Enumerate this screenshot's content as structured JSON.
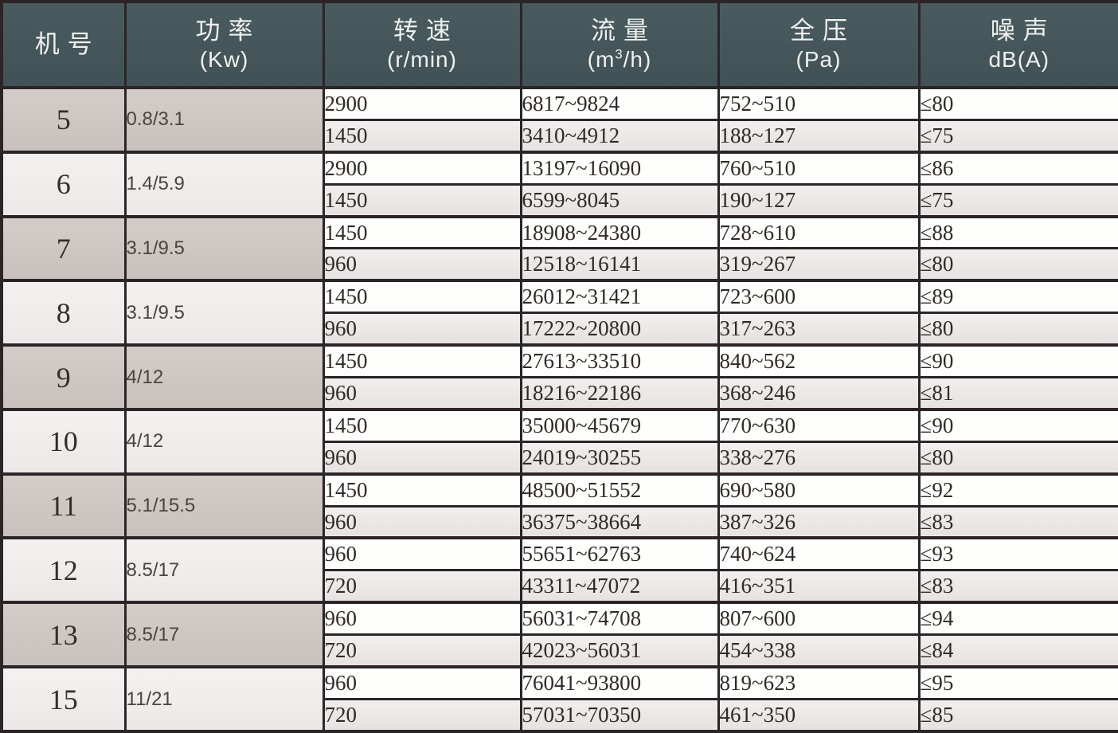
{
  "table": {
    "columns": [
      {
        "id": "model",
        "label_cn": "机号",
        "label_sub": ""
      },
      {
        "id": "power",
        "label_cn": "功率",
        "label_sub": "(Kw)"
      },
      {
        "id": "speed",
        "label_cn": "转速",
        "label_sub": "(r/min)"
      },
      {
        "id": "flow",
        "label_cn": "流量",
        "sub_pre": "(m",
        "sub_sup": "3",
        "sub_post": "/h)"
      },
      {
        "id": "pressure",
        "label_cn": "全压",
        "label_sub": "(Pa)"
      },
      {
        "id": "noise",
        "label_cn": "噪声",
        "label_sub": "dB(A)"
      }
    ],
    "rows": [
      {
        "model": "5",
        "power": "0.8/3.1",
        "variants": [
          {
            "speed": "2900",
            "flow": "6817~9824",
            "pressure": "752~510",
            "noise": "≤80"
          },
          {
            "speed": "1450",
            "flow": "3410~4912",
            "pressure": "188~127",
            "noise": "≤75"
          }
        ]
      },
      {
        "model": "6",
        "power": "1.4/5.9",
        "variants": [
          {
            "speed": "2900",
            "flow": "13197~16090",
            "pressure": "760~510",
            "noise": "≤86"
          },
          {
            "speed": "1450",
            "flow": "6599~8045",
            "pressure": "190~127",
            "noise": "≤75"
          }
        ]
      },
      {
        "model": "7",
        "power": "3.1/9.5",
        "variants": [
          {
            "speed": "1450",
            "flow": "18908~24380",
            "pressure": "728~610",
            "noise": "≤88"
          },
          {
            "speed": "960",
            "flow": "12518~16141",
            "pressure": "319~267",
            "noise": "≤80"
          }
        ]
      },
      {
        "model": "8",
        "power": "3.1/9.5",
        "variants": [
          {
            "speed": "1450",
            "flow": "26012~31421",
            "pressure": "723~600",
            "noise": "≤89"
          },
          {
            "speed": "960",
            "flow": "17222~20800",
            "pressure": "317~263",
            "noise": "≤80"
          }
        ]
      },
      {
        "model": "9",
        "power": "4/12",
        "variants": [
          {
            "speed": "1450",
            "flow": "27613~33510",
            "pressure": "840~562",
            "noise": "≤90"
          },
          {
            "speed": "960",
            "flow": "18216~22186",
            "pressure": "368~246",
            "noise": "≤81"
          }
        ]
      },
      {
        "model": "10",
        "power": "4/12",
        "variants": [
          {
            "speed": "1450",
            "flow": "35000~45679",
            "pressure": "770~630",
            "noise": "≤90"
          },
          {
            "speed": "960",
            "flow": "24019~30255",
            "pressure": "338~276",
            "noise": "≤80"
          }
        ]
      },
      {
        "model": "11",
        "power": "5.1/15.5",
        "variants": [
          {
            "speed": "1450",
            "flow": "48500~51552",
            "pressure": "690~580",
            "noise": "≤92"
          },
          {
            "speed": "960",
            "flow": "36375~38664",
            "pressure": "387~326",
            "noise": "≤83"
          }
        ]
      },
      {
        "model": "12",
        "power": "8.5/17",
        "variants": [
          {
            "speed": "960",
            "flow": "55651~62763",
            "pressure": "740~624",
            "noise": "≤93"
          },
          {
            "speed": "720",
            "flow": "43311~47072",
            "pressure": "416~351",
            "noise": "≤83"
          }
        ]
      },
      {
        "model": "13",
        "power": "8.5/17",
        "variants": [
          {
            "speed": "960",
            "flow": "56031~74708",
            "pressure": "807~600",
            "noise": "≤94"
          },
          {
            "speed": "720",
            "flow": "42023~56031",
            "pressure": "454~338",
            "noise": "≤84"
          }
        ]
      },
      {
        "model": "15",
        "power": "11/21",
        "variants": [
          {
            "speed": "960",
            "flow": "76041~93800",
            "pressure": "819~623",
            "noise": "≤95"
          },
          {
            "speed": "720",
            "flow": "57031~70350",
            "pressure": "461~350",
            "noise": "≤85"
          }
        ]
      }
    ]
  },
  "colors": {
    "header_bg": "#44565a",
    "header_text": "#eff1ee",
    "border": "#2b2527",
    "group_cell_dark": "#cdc6c2",
    "group_cell_light": "#f0edec",
    "subrow_white": "#fefefd",
    "subrow_shade": "#eae6e5"
  }
}
